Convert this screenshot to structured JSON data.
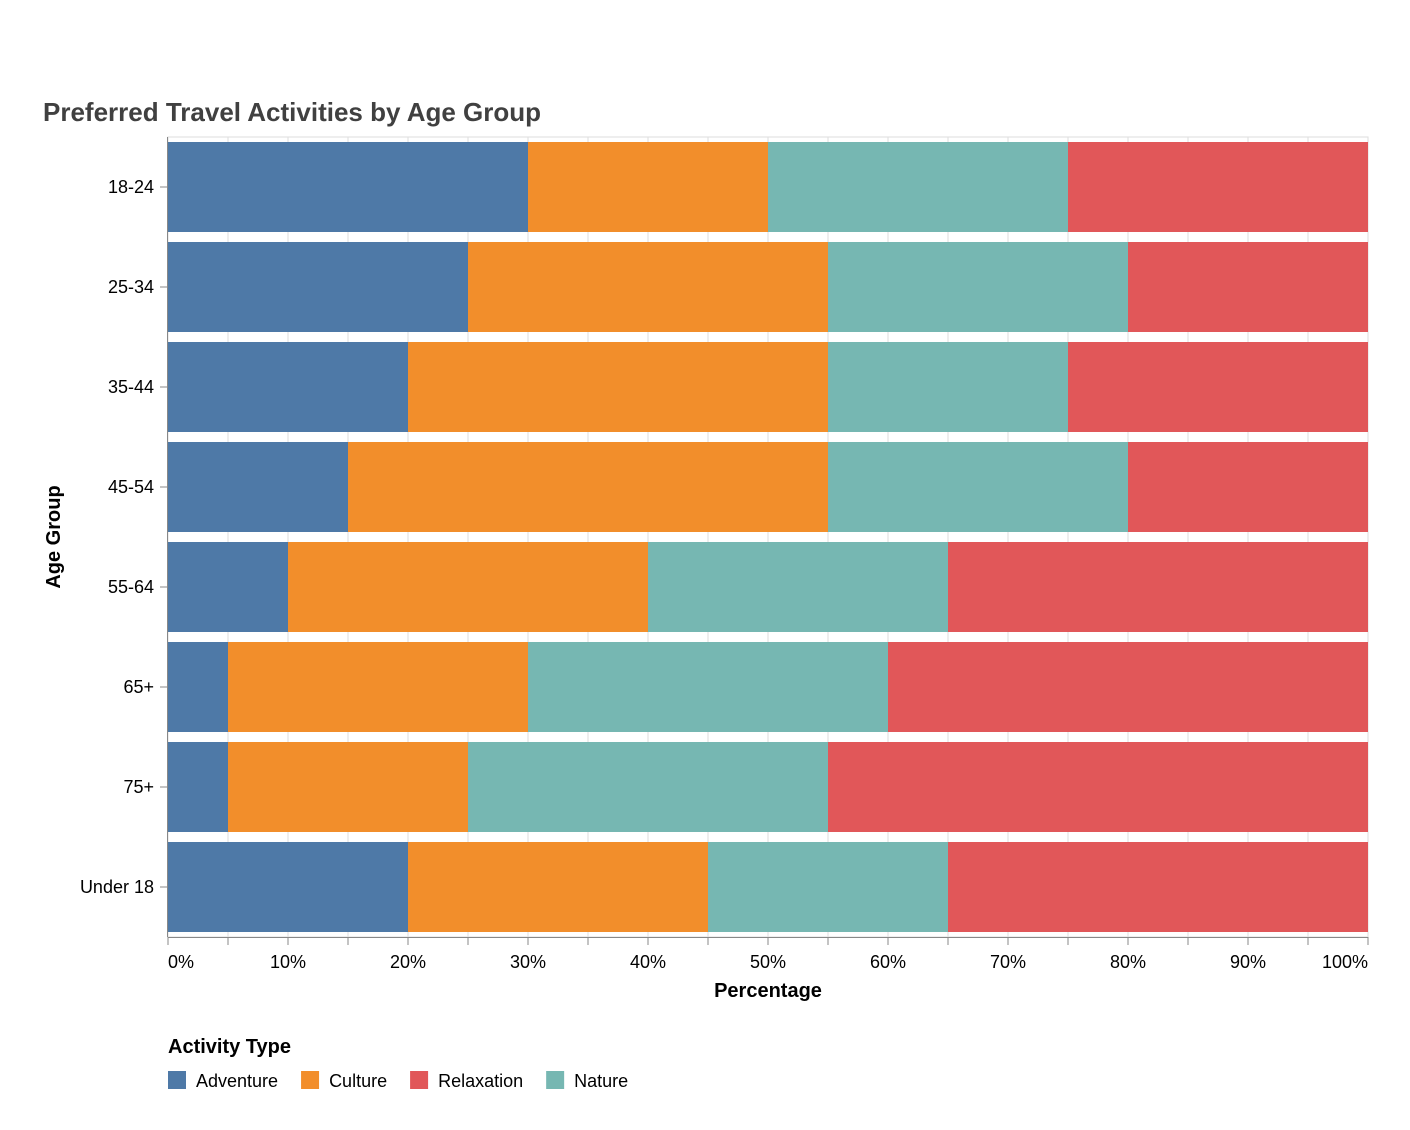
{
  "chart_data": {
    "type": "bar",
    "orientation": "horizontal",
    "stacked": true,
    "normalized": true,
    "title": "Preferred Travel Activities by Age Group",
    "xlabel": "Percentage",
    "ylabel": "Age Group",
    "xlim": [
      0,
      100
    ],
    "x_ticks": [
      "0%",
      "10%",
      "20%",
      "30%",
      "40%",
      "50%",
      "60%",
      "70%",
      "80%",
      "90%",
      "100%"
    ],
    "grid": true,
    "legend_position": "bottom-left",
    "legend_title": "Activity Type",
    "legend_order": [
      "Adventure",
      "Culture",
      "Relaxation",
      "Nature"
    ],
    "categories": [
      "18-24",
      "25-34",
      "35-44",
      "45-54",
      "55-64",
      "65+",
      "75+",
      "Under 18"
    ],
    "series": [
      {
        "name": "Adventure",
        "color": "#4e79a7",
        "values": [
          30,
          25,
          20,
          15,
          10,
          5,
          5,
          20
        ]
      },
      {
        "name": "Culture",
        "color": "#f28e2b",
        "values": [
          20,
          30,
          35,
          40,
          30,
          25,
          20,
          25
        ]
      },
      {
        "name": "Nature",
        "color": "#76b7b2",
        "values": [
          25,
          25,
          20,
          25,
          25,
          30,
          30,
          20
        ]
      },
      {
        "name": "Relaxation",
        "color": "#e15759",
        "values": [
          25,
          20,
          25,
          20,
          35,
          40,
          45,
          35
        ]
      }
    ]
  }
}
